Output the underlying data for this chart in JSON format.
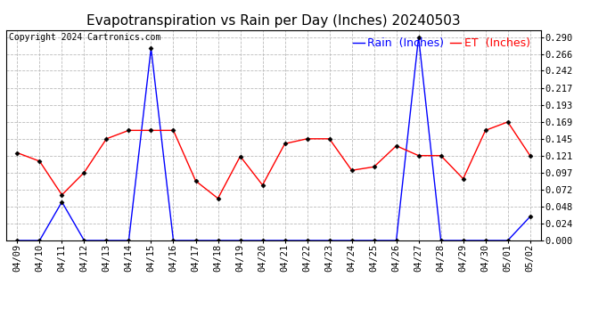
{
  "title": "Evapotranspiration vs Rain per Day (Inches) 20240503",
  "copyright": "Copyright 2024 Cartronics.com",
  "legend_rain": "Rain  (Inches)",
  "legend_et": "ET  (Inches)",
  "dates": [
    "04/09",
    "04/10",
    "04/11",
    "04/12",
    "04/13",
    "04/14",
    "04/15",
    "04/16",
    "04/17",
    "04/18",
    "04/19",
    "04/20",
    "04/21",
    "04/22",
    "04/23",
    "04/24",
    "04/25",
    "04/26",
    "04/27",
    "04/28",
    "04/29",
    "04/30",
    "05/01",
    "05/02"
  ],
  "rain": [
    0.0,
    0.0,
    0.055,
    0.0,
    0.0,
    0.0,
    0.274,
    0.0,
    0.0,
    0.0,
    0.0,
    0.0,
    0.0,
    0.0,
    0.0,
    0.0,
    0.0,
    0.0,
    0.29,
    0.0,
    0.0,
    0.0,
    0.0,
    0.034
  ],
  "et": [
    0.125,
    0.113,
    0.065,
    0.097,
    0.145,
    0.157,
    0.157,
    0.157,
    0.085,
    0.06,
    0.12,
    0.079,
    0.138,
    0.145,
    0.145,
    0.1,
    0.105,
    0.135,
    0.121,
    0.121,
    0.088,
    0.157,
    0.169,
    0.121
  ],
  "ylim": [
    0.0,
    0.3
  ],
  "yticks": [
    0.0,
    0.024,
    0.048,
    0.072,
    0.097,
    0.121,
    0.145,
    0.169,
    0.193,
    0.217,
    0.242,
    0.266,
    0.29
  ],
  "rain_color": "blue",
  "et_color": "red",
  "background_color": "#ffffff",
  "grid_color": "#bbbbbb",
  "title_fontsize": 11,
  "tick_fontsize": 7.5,
  "legend_fontsize": 9,
  "copyright_fontsize": 7
}
